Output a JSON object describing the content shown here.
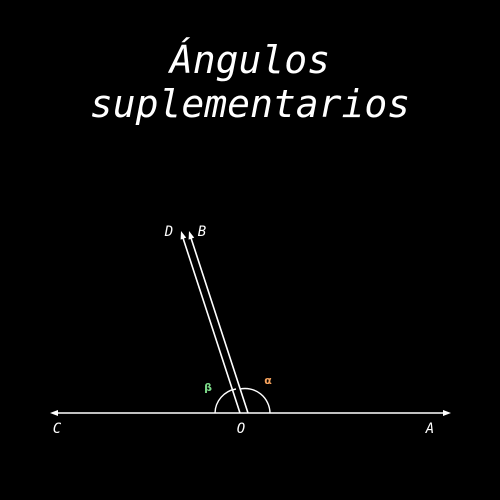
{
  "title": {
    "line1": "Ángulos",
    "line2": "suplementarios"
  },
  "diagram": {
    "points": {
      "A": "A",
      "B": "B",
      "C": "C",
      "D": "D",
      "O": "O"
    },
    "angles": {
      "alpha": {
        "symbol": "α",
        "color": "#f5a25d"
      },
      "beta": {
        "symbol": "β",
        "color": "#7ddc8a"
      }
    },
    "line_color": "#ffffff",
    "background": "#000000"
  }
}
